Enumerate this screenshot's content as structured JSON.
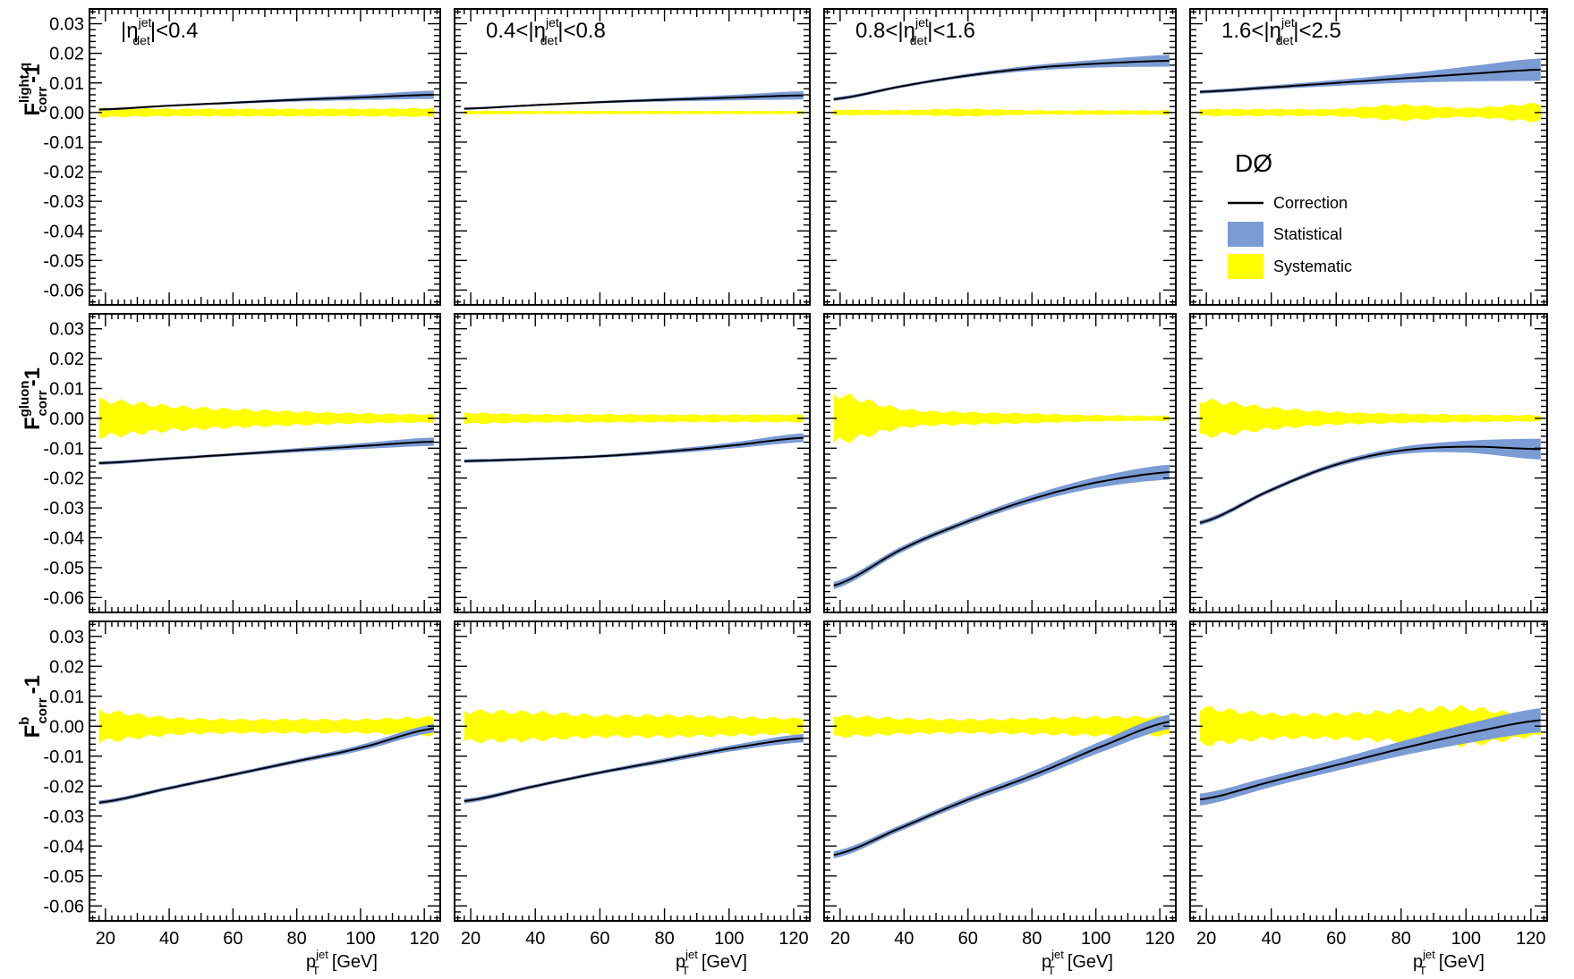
{
  "chart_data": {
    "type": "line",
    "layout": "3 rows x 4 columns grid",
    "experiment_label": "DØ",
    "legend": {
      "placement": "top-right panel",
      "entries": [
        {
          "label": "Correction",
          "kind": "line",
          "color": "#000000"
        },
        {
          "label": "Statistical",
          "kind": "band",
          "color": "#7b9bd4"
        },
        {
          "label": "Systematic",
          "kind": "band",
          "color": "#ffff00"
        }
      ]
    },
    "x_axis": {
      "label_main": "p",
      "label_sub": "T",
      "label_sup": "jet",
      "label_unit": "[GeV]",
      "range": [
        15,
        125
      ],
      "ticks": [
        20,
        40,
        60,
        80,
        100,
        120
      ],
      "tick_labels": [
        "20",
        "40",
        "60",
        "80",
        "100",
        "120"
      ]
    },
    "y_axis": {
      "range": [
        -0.065,
        0.035
      ],
      "ticks": [
        0.03,
        0.02,
        0.01,
        0.0,
        -0.01,
        -0.02,
        -0.03,
        -0.04,
        -0.05,
        -0.06
      ],
      "tick_labels": [
        "0.03",
        "0.02",
        "0.01",
        "0.00",
        "-0.01",
        "-0.02",
        "-0.03",
        "-0.04",
        "-0.05",
        "-0.06"
      ]
    },
    "columns": [
      {
        "title_pre": "|η",
        "title_sup": "jet",
        "title_sub": "det",
        "title_post": "|<0.4"
      },
      {
        "title_pre": "0.4<|η",
        "title_sup": "jet",
        "title_sub": "det",
        "title_post": "|<0.8"
      },
      {
        "title_pre": "0.8<|η",
        "title_sup": "jet",
        "title_sub": "det",
        "title_post": "|<1.6"
      },
      {
        "title_pre": "1.6<|η",
        "title_sup": "jet",
        "title_sub": "det",
        "title_post": "|<2.5"
      }
    ],
    "rows": [
      {
        "ylabel_main": "F",
        "ylabel_sup": "light q",
        "ylabel_sub": "corr",
        "ylabel_post": "-1",
        "panels": [
          {
            "x": [
              18,
              40,
              60,
              80,
              100,
              123
            ],
            "correction": [
              0.001,
              0.0023,
              0.0033,
              0.0043,
              0.0051,
              0.006
            ],
            "stat": [
              0.0004,
              0.0003,
              0.0004,
              0.0006,
              0.0009,
              0.0014
            ],
            "syst": [
              0.0015,
              0.0012,
              0.0012,
              0.0012,
              0.0012,
              0.0014
            ]
          },
          {
            "x": [
              18,
              40,
              60,
              80,
              100,
              123
            ],
            "correction": [
              0.0013,
              0.0025,
              0.0035,
              0.0043,
              0.005,
              0.0058
            ],
            "stat": [
              0.0004,
              0.0003,
              0.0004,
              0.0006,
              0.0009,
              0.0014
            ],
            "syst": [
              0.0006,
              0.0005,
              0.0005,
              0.0005,
              0.0005,
              0.0005
            ]
          },
          {
            "x": [
              18,
              40,
              60,
              80,
              100,
              123
            ],
            "correction": [
              0.0045,
              0.009,
              0.0125,
              0.015,
              0.0165,
              0.0175
            ],
            "stat": [
              0.0006,
              0.0005,
              0.0006,
              0.0009,
              0.0013,
              0.002
            ],
            "syst": [
              0.0009,
              0.0008,
              0.0012,
              0.0007,
              0.0007,
              0.0007
            ]
          },
          {
            "x": [
              18,
              40,
              60,
              80,
              100,
              123
            ],
            "correction": [
              0.007,
              0.0085,
              0.01,
              0.0115,
              0.013,
              0.0145
            ],
            "stat": [
              0.0006,
              0.0007,
              0.001,
              0.0015,
              0.0025,
              0.0038
            ],
            "syst": [
              0.0011,
              0.0011,
              0.0012,
              0.0025,
              0.0015,
              0.003
            ]
          }
        ]
      },
      {
        "ylabel_main": "F",
        "ylabel_sup": "gluon",
        "ylabel_sub": "corr",
        "ylabel_post": "-1",
        "panels": [
          {
            "x": [
              18,
              40,
              60,
              80,
              100,
              123
            ],
            "correction": [
              -0.015,
              -0.0135,
              -0.0121,
              -0.0107,
              -0.0093,
              -0.0078
            ],
            "stat": [
              0.0006,
              0.0005,
              0.0005,
              0.0007,
              0.001,
              0.0014
            ],
            "syst": [
              0.006,
              0.004,
              0.003,
              0.0022,
              0.0016,
              0.0013
            ]
          },
          {
            "x": [
              18,
              40,
              60,
              80,
              100,
              123
            ],
            "correction": [
              -0.0143,
              -0.0136,
              -0.0127,
              -0.0112,
              -0.0092,
              -0.0065
            ],
            "stat": [
              0.0006,
              0.0005,
              0.0005,
              0.0007,
              0.001,
              0.0015
            ],
            "syst": [
              0.0018,
              0.0013,
              0.0013,
              0.0012,
              0.0012,
              0.0012
            ]
          },
          {
            "x": [
              18,
              40,
              60,
              80,
              100,
              123
            ],
            "correction": [
              -0.056,
              -0.0435,
              -0.0345,
              -0.027,
              -0.0215,
              -0.018
            ],
            "stat": [
              0.0012,
              0.001,
              0.001,
              0.0013,
              0.0018,
              0.0025
            ],
            "syst": [
              0.008,
              0.003,
              0.002,
              0.0015,
              0.001,
              0.0008
            ]
          },
          {
            "x": [
              18,
              40,
              60,
              80,
              100,
              123
            ],
            "correction": [
              -0.035,
              -0.024,
              -0.0155,
              -0.0108,
              -0.0095,
              -0.0103
            ],
            "stat": [
              0.0008,
              0.0007,
              0.0008,
              0.0012,
              0.002,
              0.0035
            ],
            "syst": [
              0.006,
              0.0035,
              0.002,
              0.0015,
              0.0012,
              0.001
            ]
          }
        ]
      },
      {
        "ylabel_main": "F",
        "ylabel_sup": "b",
        "ylabel_sub": "corr",
        "ylabel_post": "-1",
        "panels": [
          {
            "x": [
              18,
              40,
              60,
              80,
              100,
              123
            ],
            "correction": [
              -0.0255,
              -0.0207,
              -0.0162,
              -0.0117,
              -0.0072,
              -0.0007
            ],
            "stat": [
              0.0007,
              0.0006,
              0.0006,
              0.0007,
              0.001,
              0.0014
            ],
            "syst": [
              0.005,
              0.0028,
              0.0022,
              0.0022,
              0.0022,
              0.003
            ]
          },
          {
            "x": [
              18,
              40,
              60,
              80,
              100,
              123
            ],
            "correction": [
              -0.025,
              -0.02,
              -0.0155,
              -0.0115,
              -0.0075,
              -0.004
            ],
            "stat": [
              0.0008,
              0.0006,
              0.0006,
              0.0008,
              0.001,
              0.0014
            ],
            "syst": [
              0.005,
              0.0045,
              0.0035,
              0.0035,
              0.003,
              0.0025
            ]
          },
          {
            "x": [
              18,
              40,
              60,
              80,
              100,
              123
            ],
            "correction": [
              -0.043,
              -0.0335,
              -0.0245,
              -0.0165,
              -0.0075,
              0.0015
            ],
            "stat": [
              0.0012,
              0.001,
              0.0011,
              0.0014,
              0.0018,
              0.0024
            ],
            "syst": [
              0.0035,
              0.0025,
              0.0022,
              0.0025,
              0.003,
              0.003
            ]
          },
          {
            "x": [
              18,
              40,
              60,
              80,
              100,
              123
            ],
            "correction": [
              -0.0245,
              -0.0185,
              -0.013,
              -0.0075,
              -0.0025,
              0.002
            ],
            "stat": [
              0.002,
              0.0018,
              0.0019,
              0.0024,
              0.0032,
              0.004
            ],
            "syst": [
              0.006,
              0.004,
              0.004,
              0.005,
              0.006,
              0.003
            ]
          }
        ]
      }
    ]
  }
}
